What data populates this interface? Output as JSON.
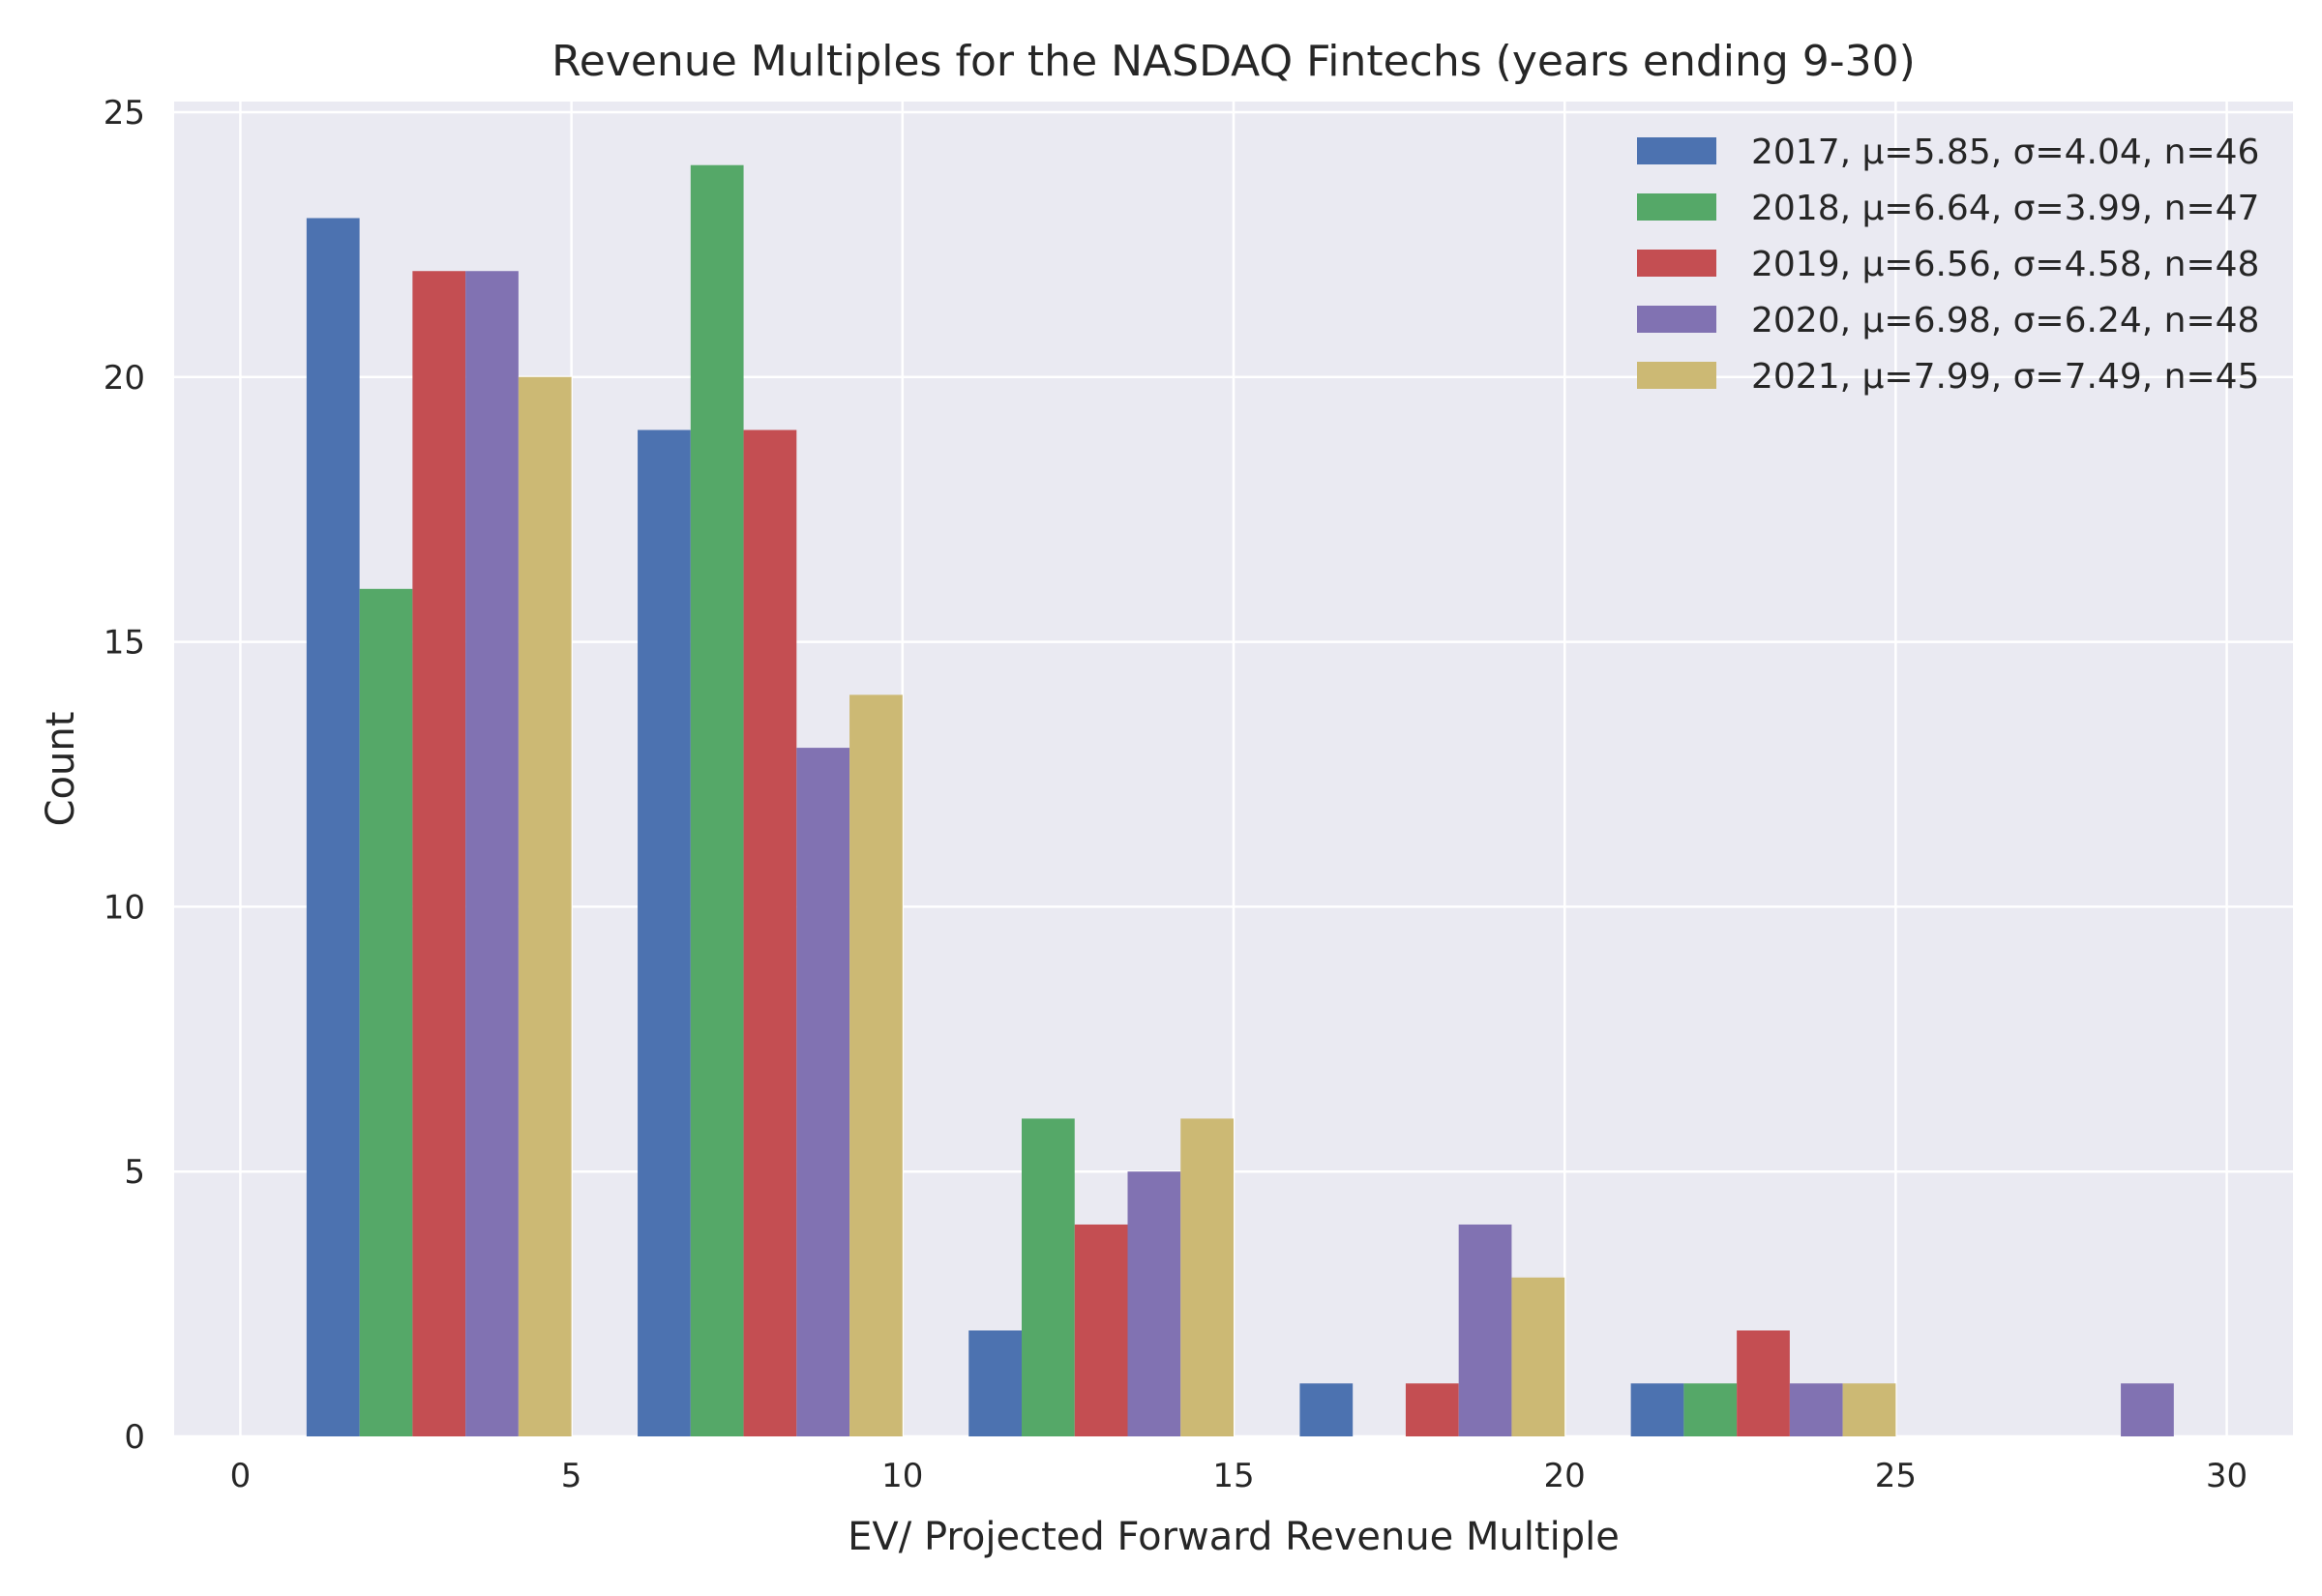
{
  "chart_data": {
    "type": "bar",
    "title": "Revenue Multiples for the NASDAQ Fintechs (years ending 9-30)",
    "xlabel": "EV/ Projected Forward Revenue Multiple",
    "ylabel": "Count",
    "xlim": [
      -1,
      31
    ],
    "ylim": [
      0,
      25.2
    ],
    "xticks": [
      0,
      5,
      10,
      15,
      20,
      25,
      30
    ],
    "yticks": [
      0,
      5,
      10,
      15,
      20,
      25
    ],
    "grid": true,
    "legend_position": "top-right",
    "bin_edges": [
      0.5,
      5.5,
      10.5,
      15.5,
      20.5,
      25.5,
      30.5
    ],
    "series": [
      {
        "name": "2017, μ=5.85, σ=4.04, n=46",
        "color": "#4c72b0",
        "values": [
          23,
          19,
          2,
          1,
          1,
          0
        ]
      },
      {
        "name": "2018, μ=6.64, σ=3.99, n=47",
        "color": "#55a868",
        "values": [
          16,
          24,
          6,
          0,
          1,
          0
        ]
      },
      {
        "name": "2019, μ=6.56, σ=4.58, n=48",
        "color": "#c44e52",
        "values": [
          22,
          19,
          4,
          1,
          2,
          0
        ]
      },
      {
        "name": "2020, μ=6.98, σ=6.24, n=48",
        "color": "#8172b2",
        "values": [
          22,
          13,
          5,
          4,
          1,
          1
        ]
      },
      {
        "name": "2021, μ=7.99, σ=7.49, n=45",
        "color": "#ccb974",
        "values": [
          20,
          14,
          6,
          3,
          1,
          0
        ]
      }
    ]
  }
}
